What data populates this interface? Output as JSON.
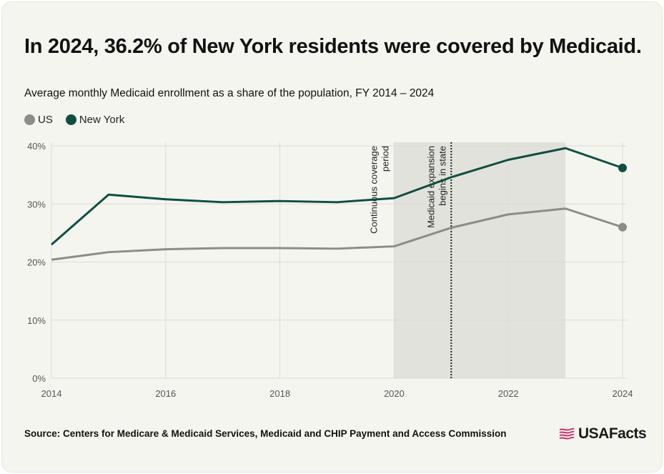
{
  "title": "In 2024, 36.2% of New York residents were covered by Medicaid.",
  "subtitle": "Average monthly Medicaid enrollment as a share of the population, FY 2014 – 2024",
  "source": "Source: Centers for Medicare & Medicaid Services, Medicaid and CHIP Payment and Access Commission",
  "logo": {
    "text": "USAFacts",
    "icon": "flag-icon",
    "color": "#c8326a"
  },
  "chart_data": {
    "type": "line",
    "x": [
      2014,
      2015,
      2016,
      2017,
      2018,
      2019,
      2020,
      2021,
      2022,
      2023,
      2024
    ],
    "series": [
      {
        "name": "US",
        "color": "#8c8c88",
        "values": [
          20.4,
          21.7,
          22.2,
          22.4,
          22.4,
          22.3,
          22.7,
          25.9,
          28.2,
          29.2,
          26.0
        ]
      },
      {
        "name": "New York",
        "color": "#0e4f42",
        "values": [
          23.0,
          31.6,
          30.8,
          30.3,
          30.5,
          30.3,
          31.0,
          34.6,
          37.6,
          39.6,
          36.2
        ]
      }
    ],
    "xlim": [
      2014,
      2024
    ],
    "ylim": [
      0,
      40
    ],
    "xticks": [
      2014,
      2016,
      2018,
      2020,
      2022,
      2024
    ],
    "yticks": [
      0,
      10,
      20,
      30,
      40
    ],
    "ytick_labels": [
      "0%",
      "10%",
      "20%",
      "30%",
      "40%"
    ],
    "grid": true,
    "legend_position": "top-left",
    "shaded_region": {
      "from": 2020,
      "to": 2023,
      "color": "#e2e2dc"
    },
    "annotations": [
      {
        "x": 2020,
        "lines": [
          "Continuous coverage",
          "period"
        ]
      },
      {
        "x": 2021,
        "lines": [
          "Medicaid expansion",
          "begins in state"
        ],
        "dotted_line": true
      }
    ]
  }
}
